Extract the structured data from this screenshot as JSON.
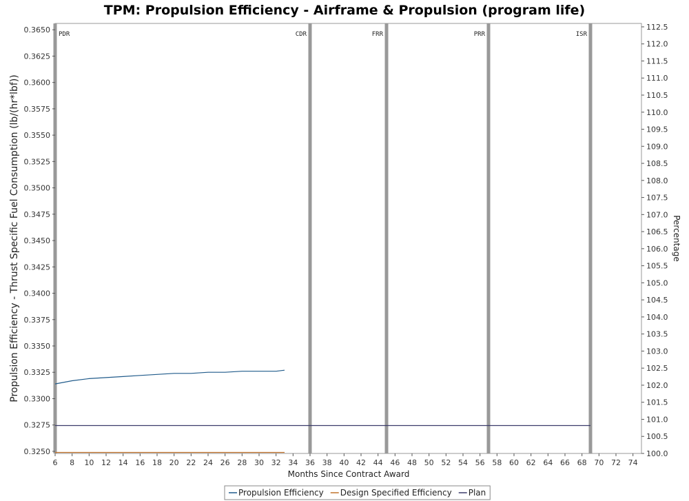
{
  "chart_data": {
    "type": "line",
    "title": "TPM: Propulsion Efficiency - Airframe & Propulsion (program life)",
    "xlabel": "Months Since Contract Award",
    "ylabel": "Propulsion Efficiency - Thrust Specific Fuel Consumption (lb/(hr*lbf))",
    "y2label": "Percentage",
    "xlim": [
      6,
      75
    ],
    "ylim": [
      0.3248,
      0.3656
    ],
    "y2lim": [
      100.0,
      112.6
    ],
    "x_ticks": [
      6,
      8,
      10,
      12,
      14,
      16,
      18,
      20,
      22,
      24,
      26,
      28,
      30,
      32,
      34,
      36,
      38,
      40,
      42,
      44,
      46,
      48,
      50,
      52,
      54,
      56,
      58,
      60,
      62,
      64,
      66,
      68,
      70,
      72,
      74
    ],
    "y_ticks": [
      "0.3250",
      "0.3275",
      "0.3300",
      "0.3325",
      "0.3350",
      "0.3375",
      "0.3400",
      "0.3425",
      "0.3450",
      "0.3475",
      "0.3500",
      "0.3525",
      "0.3550",
      "0.3575",
      "0.3600",
      "0.3625",
      "0.3650"
    ],
    "y2_ticks": [
      "100.0",
      "100.5",
      "101.0",
      "101.5",
      "102.0",
      "102.5",
      "103.0",
      "103.5",
      "104.0",
      "104.5",
      "105.0",
      "105.5",
      "106.0",
      "106.5",
      "107.0",
      "107.5",
      "108.0",
      "108.5",
      "109.0",
      "109.5",
      "110.0",
      "110.5",
      "111.0",
      "111.5",
      "112.0",
      "112.5"
    ],
    "milestones": [
      {
        "label": "PDR",
        "x": 6
      },
      {
        "label": "CDR",
        "x": 36
      },
      {
        "label": "FRR",
        "x": 45
      },
      {
        "label": "PRR",
        "x": 57
      },
      {
        "label": "ISR",
        "x": 69
      }
    ],
    "series": [
      {
        "name": "Propulsion Efficiency",
        "color": "#1f5a8a",
        "x": [
          6,
          8,
          10,
          12,
          14,
          16,
          18,
          20,
          22,
          24,
          26,
          28,
          30,
          32,
          33
        ],
        "y": [
          0.3314,
          0.3317,
          0.3319,
          0.332,
          0.3321,
          0.3322,
          0.3323,
          0.3324,
          0.3324,
          0.3325,
          0.3325,
          0.3326,
          0.3326,
          0.3326,
          0.3327
        ]
      },
      {
        "name": "Design Specified Efficiency",
        "color": "#c0722a",
        "x": [
          6,
          33
        ],
        "y": [
          0.3249,
          0.3249
        ]
      },
      {
        "name": "Plan",
        "color": "#3a3a6a",
        "x": [
          6,
          69
        ],
        "y": [
          0.32745,
          0.32745
        ]
      }
    ],
    "legend_position": "bottom-center",
    "grid": false
  }
}
